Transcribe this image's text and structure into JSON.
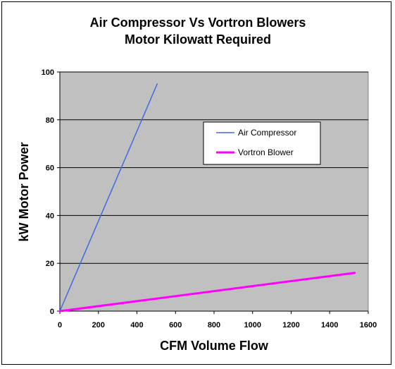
{
  "chart_data": {
    "type": "line",
    "title": "Air Compressor Vs Vortron Blowers",
    "subtitle": "Motor Kilowatt Required",
    "xlabel": "CFM Volume Flow",
    "ylabel": "kW Motor Power",
    "xlim": [
      0,
      1600
    ],
    "ylim": [
      0,
      100
    ],
    "x_ticks": [
      "0",
      "200",
      "400",
      "600",
      "800",
      "1000",
      "1200",
      "1400",
      "1600"
    ],
    "y_ticks": [
      "0",
      "20",
      "40",
      "60",
      "80",
      "100"
    ],
    "grid": "horizontal",
    "legend_position": "right",
    "plot_background": "#c0c0c0",
    "series": [
      {
        "name": "Air Compressor",
        "color": "#4169e1",
        "x": [
          0,
          505
        ],
        "y": [
          0,
          95
        ]
      },
      {
        "name": "Vortron Blower",
        "color": "#ff00ff",
        "x": [
          0,
          1530
        ],
        "y": [
          0,
          16
        ]
      }
    ]
  }
}
